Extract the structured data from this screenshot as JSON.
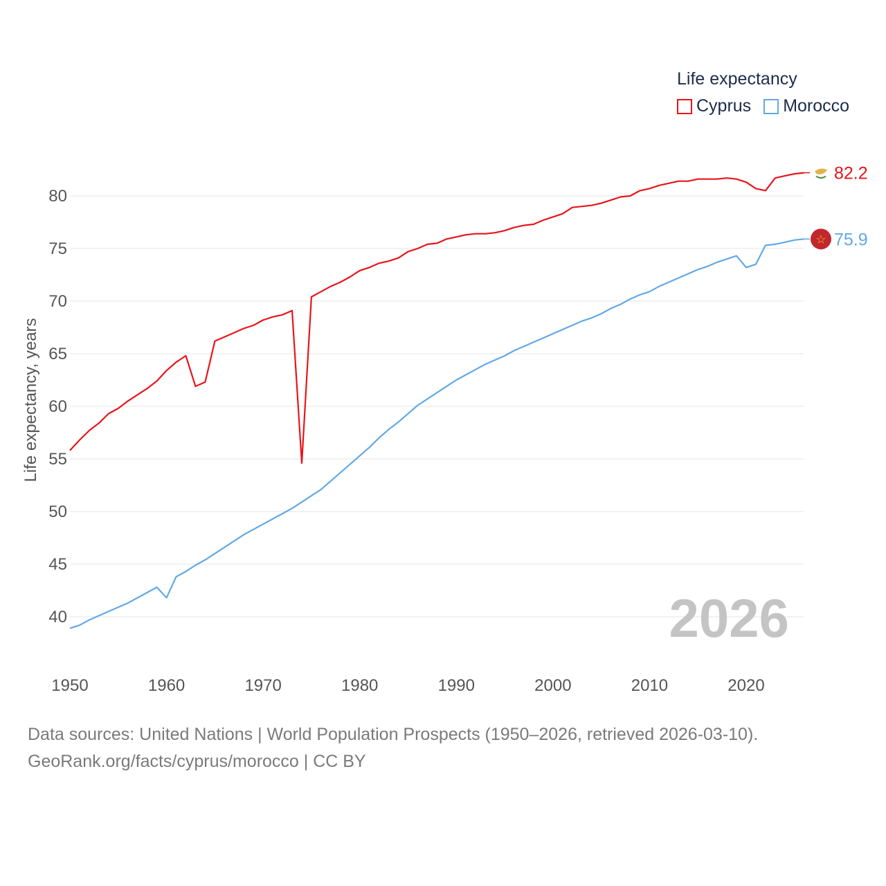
{
  "legend": {
    "title": "Life expectancy",
    "items": [
      {
        "name": "Cyprus",
        "color": "#e8141a"
      },
      {
        "name": "Morocco",
        "color": "#62a8e6"
      }
    ]
  },
  "footer": {
    "line1": "Data sources: United Nations | World Population Prospects (1950–2026, retrieved 2026-03-10).",
    "line2": "GeoRank.org/facts/cyprus/morocco | CC BY"
  },
  "chart_data": {
    "type": "line",
    "title": "Life expectancy",
    "xlabel": "",
    "ylabel": "Life expectancy, years",
    "xlim": [
      1950,
      2026
    ],
    "ylim": [
      37,
      84
    ],
    "y_ticks": [
      40,
      45,
      50,
      55,
      60,
      65,
      70,
      75,
      80
    ],
    "x_ticks": [
      1950,
      1960,
      1970,
      1980,
      1990,
      2000,
      2010,
      2020
    ],
    "grid": true,
    "watermark_year": "2026",
    "series": [
      {
        "name": "Cyprus",
        "color": "#e8141a",
        "end_label": "82.2",
        "flag": "cyprus-flag",
        "x": [
          1950,
          1951,
          1952,
          1953,
          1954,
          1955,
          1956,
          1957,
          1958,
          1959,
          1960,
          1961,
          1962,
          1963,
          1964,
          1965,
          1966,
          1967,
          1968,
          1969,
          1970,
          1971,
          1972,
          1973,
          1974,
          1975,
          1976,
          1977,
          1978,
          1979,
          1980,
          1981,
          1982,
          1983,
          1984,
          1985,
          1986,
          1987,
          1988,
          1989,
          1990,
          1991,
          1992,
          1993,
          1994,
          1995,
          1996,
          1997,
          1998,
          1999,
          2000,
          2001,
          2002,
          2003,
          2004,
          2005,
          2006,
          2007,
          2008,
          2009,
          2010,
          2011,
          2012,
          2013,
          2014,
          2015,
          2016,
          2017,
          2018,
          2019,
          2020,
          2021,
          2022,
          2023,
          2024,
          2025,
          2026
        ],
        "values": [
          55.8,
          56.8,
          57.7,
          58.4,
          59.3,
          59.8,
          60.5,
          61.1,
          61.7,
          62.4,
          63.4,
          64.2,
          64.8,
          61.9,
          62.3,
          66.2,
          66.6,
          67.0,
          67.4,
          67.7,
          68.2,
          68.5,
          68.7,
          69.1,
          54.6,
          70.4,
          70.9,
          71.4,
          71.8,
          72.3,
          72.9,
          73.2,
          73.6,
          73.8,
          74.1,
          74.7,
          75.0,
          75.4,
          75.5,
          75.9,
          76.1,
          76.3,
          76.4,
          76.4,
          76.5,
          76.7,
          77.0,
          77.2,
          77.3,
          77.7,
          78.0,
          78.3,
          78.9,
          79.0,
          79.1,
          79.3,
          79.6,
          79.9,
          80.0,
          80.5,
          80.7,
          81.0,
          81.2,
          81.4,
          81.4,
          81.6,
          81.6,
          81.6,
          81.7,
          81.6,
          81.3,
          80.7,
          80.5,
          81.7,
          81.9,
          82.1,
          82.2
        ]
      },
      {
        "name": "Morocco",
        "color": "#62a8e6",
        "end_label": "75.9",
        "flag": "morocco-flag",
        "x": [
          1950,
          1951,
          1952,
          1953,
          1954,
          1955,
          1956,
          1957,
          1958,
          1959,
          1960,
          1961,
          1962,
          1963,
          1964,
          1965,
          1966,
          1967,
          1968,
          1969,
          1970,
          1971,
          1972,
          1973,
          1974,
          1975,
          1976,
          1977,
          1978,
          1979,
          1980,
          1981,
          1982,
          1983,
          1984,
          1985,
          1986,
          1987,
          1988,
          1989,
          1990,
          1991,
          1992,
          1993,
          1994,
          1995,
          1996,
          1997,
          1998,
          1999,
          2000,
          2001,
          2002,
          2003,
          2004,
          2005,
          2006,
          2007,
          2008,
          2009,
          2010,
          2011,
          2012,
          2013,
          2014,
          2015,
          2016,
          2017,
          2018,
          2019,
          2020,
          2021,
          2022,
          2023,
          2024,
          2025,
          2026
        ],
        "values": [
          38.9,
          39.2,
          39.7,
          40.1,
          40.5,
          40.9,
          41.3,
          41.8,
          42.3,
          42.8,
          41.8,
          43.8,
          44.3,
          44.9,
          45.4,
          46.0,
          46.6,
          47.2,
          47.8,
          48.3,
          48.8,
          49.3,
          49.8,
          50.3,
          50.9,
          51.5,
          52.1,
          52.9,
          53.7,
          54.5,
          55.3,
          56.1,
          57.0,
          57.8,
          58.5,
          59.3,
          60.1,
          60.7,
          61.3,
          61.9,
          62.5,
          63.0,
          63.5,
          64.0,
          64.4,
          64.8,
          65.3,
          65.7,
          66.1,
          66.5,
          66.9,
          67.3,
          67.7,
          68.1,
          68.4,
          68.8,
          69.3,
          69.7,
          70.2,
          70.6,
          70.9,
          71.4,
          71.8,
          72.2,
          72.6,
          73.0,
          73.3,
          73.7,
          74.0,
          74.3,
          73.2,
          73.5,
          75.3,
          75.4,
          75.6,
          75.8,
          75.9
        ]
      }
    ]
  }
}
